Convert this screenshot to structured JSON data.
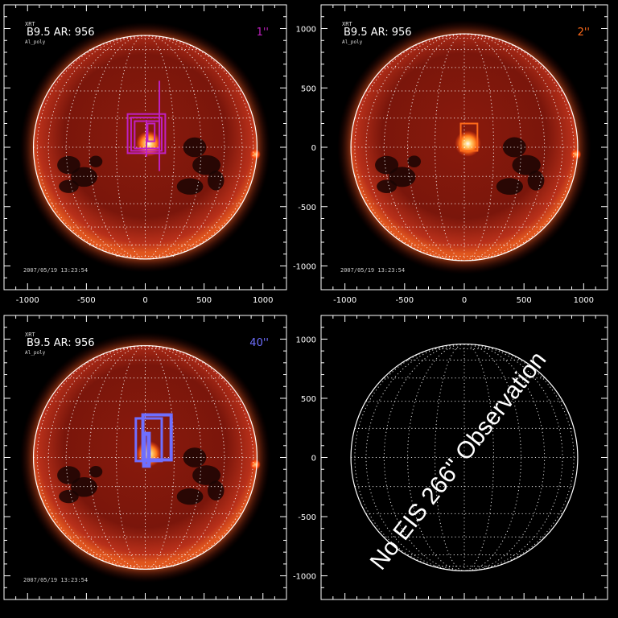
{
  "panels": [
    {
      "id": "tl",
      "flare_label": "B9.5",
      "ar_label": "AR:",
      "ar_number": "956",
      "instrument_small": "XRT",
      "filter_small": "Al_poly",
      "timestamp": "2007/05/19 13:23:54",
      "scale_label": "1''",
      "scale_color": "#c020c0",
      "has_image": true
    },
    {
      "id": "tr",
      "flare_label": "B9.5",
      "ar_label": "AR:",
      "ar_number": "956",
      "instrument_small": "XRT",
      "filter_small": "Al_poly",
      "timestamp": "2007/05/19 13:23:54",
      "scale_label": "2''",
      "scale_color": "#ff6a1a",
      "has_image": true
    },
    {
      "id": "bl",
      "flare_label": "B9.5",
      "ar_label": "AR:",
      "ar_number": "956",
      "instrument_small": "XRT",
      "filter_small": "Al_poly",
      "timestamp": "2007/05/19 13:23:54",
      "scale_label": "40''",
      "scale_color": "#6f6fff",
      "has_image": true
    },
    {
      "id": "br",
      "has_image": false,
      "no_obs_text": "No EIS 266\" Observation"
    }
  ],
  "axis": {
    "x_ticks": [
      "-1000",
      "-500",
      "0",
      "500",
      "1000"
    ],
    "y_ticks": [
      "1000",
      "500",
      "0",
      "-500",
      "-1000"
    ],
    "range": [
      -1200,
      1200
    ]
  }
}
